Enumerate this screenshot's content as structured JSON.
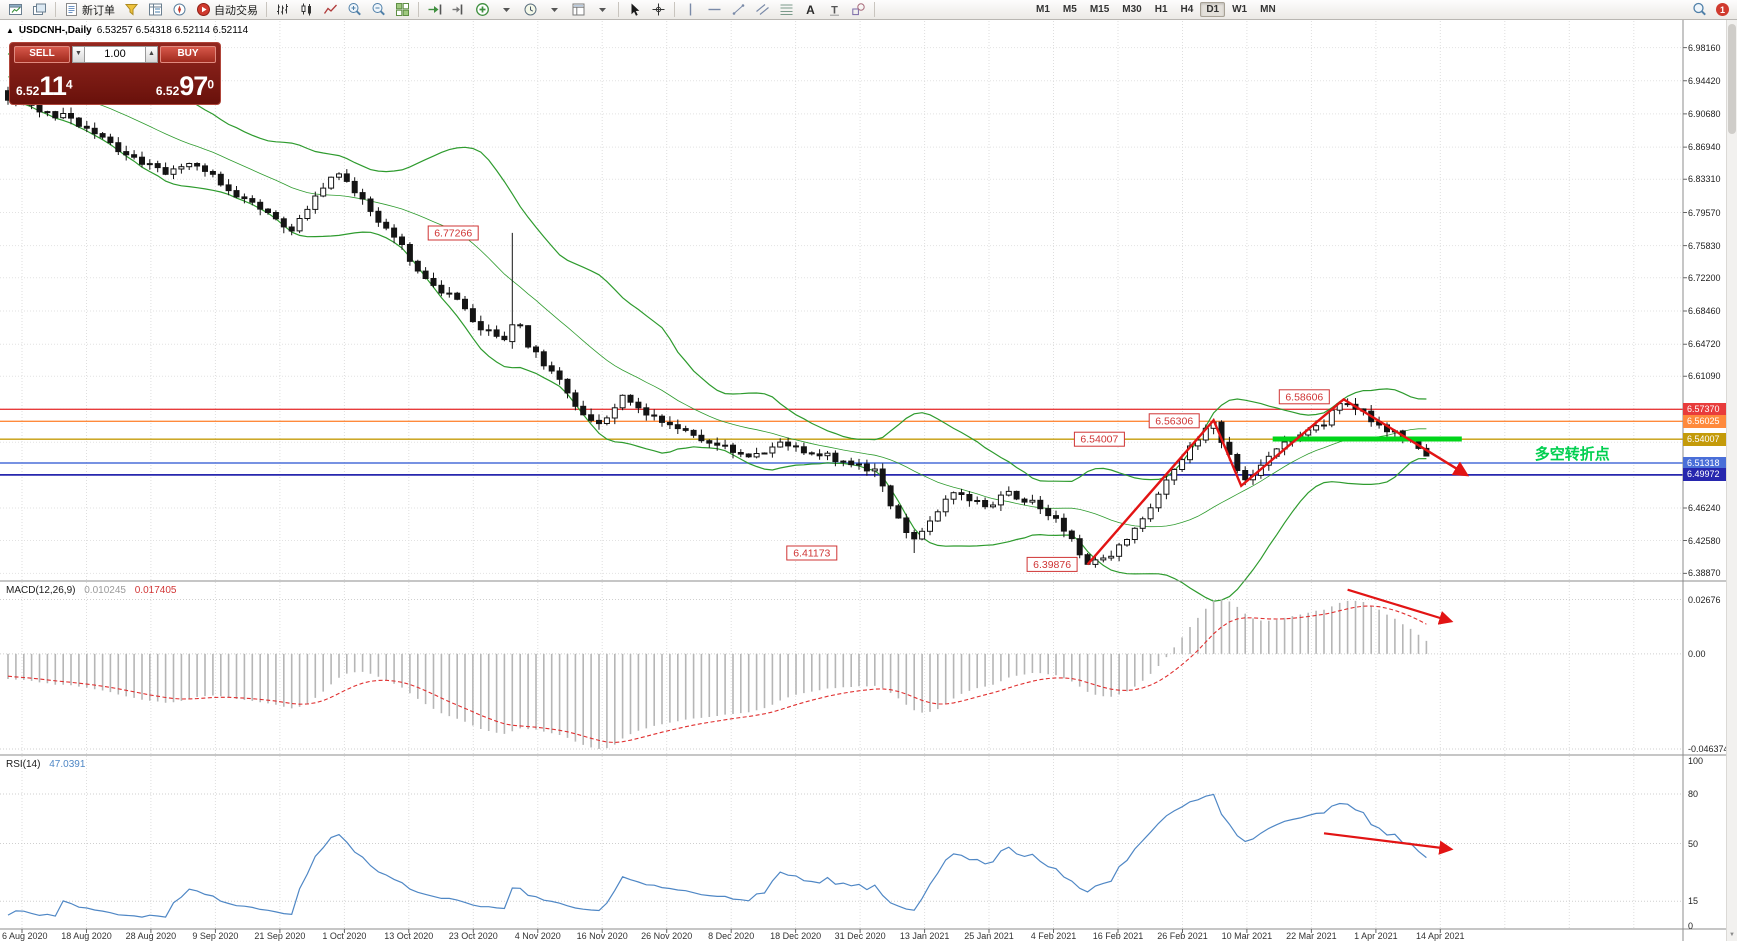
{
  "app": {
    "name": "MetaTrader"
  },
  "toolbar": {
    "items": [
      {
        "name": "new-chart-button",
        "glyph": "chartwin"
      },
      {
        "name": "chart-profiles-button",
        "glyph": "profiles"
      },
      {
        "sep": true
      },
      {
        "name": "new-order-button",
        "glyph": "order",
        "label": "新订单"
      },
      {
        "name": "market-watch-button",
        "glyph": "funnel"
      },
      {
        "name": "data-window-button",
        "glyph": "datawin"
      },
      {
        "name": "navigator-button",
        "glyph": "compass"
      },
      {
        "name": "autotrading-button",
        "glyph": "autotrade",
        "label": "自动交易"
      },
      {
        "sep": true
      },
      {
        "name": "bar-chart-button",
        "glyph": "bars"
      },
      {
        "name": "candlestick-chart-button",
        "glyph": "candles"
      },
      {
        "name": "line-chart-button",
        "glyph": "linechart"
      },
      {
        "name": "zoom-in-button",
        "glyph": "zoomin"
      },
      {
        "name": "zoom-out-button",
        "glyph": "zoomout"
      },
      {
        "name": "tile-windows-button",
        "glyph": "tile"
      },
      {
        "sep": true
      },
      {
        "name": "auto-scroll-button",
        "glyph": "autoscroll"
      },
      {
        "name": "chart-shift-button",
        "glyph": "chartshift"
      },
      {
        "name": "indicators-button",
        "glyph": "indicators"
      },
      {
        "name": "indicators-dropdown",
        "glyph": "dropdown"
      },
      {
        "name": "periods-button",
        "glyph": "clock"
      },
      {
        "name": "periods-dropdown",
        "glyph": "dropdown"
      },
      {
        "name": "templates-button",
        "glyph": "template"
      },
      {
        "name": "templates-dropdown",
        "glyph": "dropdown"
      },
      {
        "sep": true
      },
      {
        "name": "cursor-button",
        "glyph": "cursor"
      },
      {
        "name": "crosshair-button",
        "glyph": "crosshair"
      },
      {
        "sep": true
      },
      {
        "name": "vertical-line-button",
        "glyph": "vline"
      },
      {
        "name": "horizontal-line-button",
        "glyph": "hline"
      },
      {
        "name": "trendline-button",
        "glyph": "tline"
      },
      {
        "name": "channel-button",
        "glyph": "channel"
      },
      {
        "name": "fibonacci-button",
        "glyph": "fibo"
      },
      {
        "name": "text-button",
        "glyph": "textA"
      },
      {
        "name": "text-label-button",
        "glyph": "labelT"
      },
      {
        "name": "shapes-button",
        "glyph": "shapes"
      },
      {
        "sep": true
      }
    ],
    "timeframes": [
      {
        "label": "M1"
      },
      {
        "label": "M5"
      },
      {
        "label": "M15"
      },
      {
        "label": "M30"
      },
      {
        "label": "H1"
      },
      {
        "label": "H4"
      },
      {
        "label": "D1",
        "active": true
      },
      {
        "label": "W1"
      },
      {
        "label": "MN"
      }
    ],
    "right_items": [
      {
        "name": "search-button",
        "glyph": "magnifier"
      },
      {
        "name": "notification-badge",
        "badge": "1"
      }
    ]
  },
  "chart_header": {
    "collapse_icon": "▲",
    "symbol": "USDCNH-,Daily",
    "ohlc": "6.53257 6.54318 6.52114 6.52114"
  },
  "trade_panel": {
    "sell_label": "SELL",
    "buy_label": "BUY",
    "lot": "1.00",
    "spin_down": "▼",
    "spin_up": "▲",
    "bid": {
      "prefix": "6.52",
      "big": "11",
      "sup": "4"
    },
    "ask": {
      "prefix": "6.52",
      "big": "97",
      "sup": "0"
    }
  },
  "price_axis": {
    "labels": [
      "6.98160",
      "6.94420",
      "6.90680",
      "6.86940",
      "6.83310",
      "6.79570",
      "6.75830",
      "6.72200",
      "6.68460",
      "6.64720",
      "6.61090",
      "6.57370",
      "6.53660",
      "6.49950",
      "6.46240",
      "6.42580",
      "6.38870"
    ]
  },
  "macd": {
    "label": "MACD(12,26,9)",
    "value1": "0.010245",
    "value2": "0.017405",
    "axis": [
      "0.02676",
      "0.00",
      "-0.046374"
    ]
  },
  "rsi": {
    "label": "RSI(14)",
    "value": "47.0391",
    "axis": [
      "100",
      "80",
      "50",
      "15",
      "0"
    ],
    "levels": [
      80,
      50,
      15
    ]
  },
  "date_axis": {
    "labels": [
      "6 Aug 2020",
      "18 Aug 2020",
      "28 Aug 2020",
      "9 Sep 2020",
      "21 Sep 2020",
      "1 Oct 2020",
      "13 Oct 2020",
      "23 Oct 2020",
      "4 Nov 2020",
      "16 Nov 2020",
      "26 Nov 2020",
      "8 Dec 2020",
      "18 Dec 2020",
      "31 Dec 2020",
      "13 Jan 2021",
      "25 Jan 2021",
      "4 Feb 2021",
      "16 Feb 2021",
      "26 Feb 2021",
      "10 Mar 2021",
      "22 Mar 2021",
      "1 Apr 2021",
      "14 Apr 2021"
    ]
  },
  "scrollbar": {
    "up_icon": "▲",
    "down_icon": "▼"
  },
  "chart_data": {
    "type": "candlestick",
    "symbol": "USDCNH-",
    "timeframe": "Daily",
    "current_ohlc": {
      "open": 6.53257,
      "high": 6.54318,
      "low": 6.52114,
      "close": 6.52114
    },
    "price_range": {
      "max": 6.9816,
      "min": 6.3887
    },
    "indicators": {
      "bollinger": {
        "period": 20,
        "deviation": 2,
        "color": "#2e9b2e"
      },
      "macd": {
        "fast": 12,
        "slow": 26,
        "signal": 9,
        "histogram_color": "#b6b6b6",
        "signal_color": "#e03030"
      },
      "rsi": {
        "period": 14,
        "color": "#4f87c5"
      }
    },
    "close_anchors": [
      [
        0,
        6.925
      ],
      [
        4,
        6.913
      ],
      [
        8,
        6.9
      ],
      [
        12,
        6.878
      ],
      [
        16,
        6.856
      ],
      [
        20,
        6.84
      ],
      [
        24,
        6.852
      ],
      [
        27,
        6.828
      ],
      [
        30,
        6.812
      ],
      [
        33,
        6.798
      ],
      [
        36,
        6.775
      ],
      [
        39,
        6.815
      ],
      [
        42,
        6.842
      ],
      [
        45,
        6.808
      ],
      [
        48,
        6.778
      ],
      [
        51,
        6.744
      ],
      [
        54,
        6.712
      ],
      [
        57,
        6.695
      ],
      [
        60,
        6.662
      ],
      [
        63,
        6.656
      ],
      [
        65,
        6.668
      ],
      [
        66,
        6.645
      ],
      [
        69,
        6.618
      ],
      [
        72,
        6.578
      ],
      [
        75,
        6.556
      ],
      [
        78,
        6.586
      ],
      [
        81,
        6.57
      ],
      [
        84,
        6.556
      ],
      [
        87,
        6.546
      ],
      [
        90,
        6.532
      ],
      [
        94,
        6.521
      ],
      [
        98,
        6.536
      ],
      [
        102,
        6.526
      ],
      [
        106,
        6.514
      ],
      [
        110,
        6.504
      ],
      [
        112,
        6.468
      ],
      [
        114,
        6.432
      ],
      [
        115,
        6.425
      ],
      [
        117,
        6.452
      ],
      [
        119,
        6.472
      ],
      [
        121,
        6.48
      ],
      [
        124,
        6.463
      ],
      [
        127,
        6.478
      ],
      [
        130,
        6.468
      ],
      [
        132,
        6.457
      ],
      [
        134,
        6.438
      ],
      [
        136,
        6.41
      ],
      [
        137,
        6.402
      ],
      [
        139,
        6.406
      ],
      [
        141,
        6.418
      ],
      [
        144,
        6.452
      ],
      [
        147,
        6.492
      ],
      [
        150,
        6.53
      ],
      [
        152,
        6.552
      ],
      [
        153,
        6.56
      ],
      [
        155,
        6.52
      ],
      [
        157,
        6.492
      ],
      [
        159,
        6.508
      ],
      [
        161,
        6.528
      ],
      [
        163,
        6.54
      ],
      [
        165,
        6.548
      ],
      [
        167,
        6.56
      ],
      [
        169,
        6.578
      ],
      [
        170,
        6.582
      ],
      [
        172,
        6.568
      ],
      [
        174,
        6.556
      ],
      [
        176,
        6.546
      ],
      [
        178,
        6.538
      ],
      [
        179,
        6.53
      ],
      [
        180,
        6.5211
      ]
    ],
    "extremes": [
      {
        "i": 64,
        "open": 6.65,
        "close": 6.669,
        "high": 6.77266,
        "low": 6.642
      },
      {
        "i": 115,
        "low": 6.41173
      },
      {
        "i": 137,
        "low": 6.39876
      },
      {
        "i": 153,
        "high": 6.56306
      },
      {
        "i": 170,
        "high": 6.58606
      },
      {
        "i": 180,
        "close": 6.52114
      }
    ],
    "hlines": [
      {
        "label": "6.57370",
        "price": 6.5737,
        "color": "#e83c3c",
        "width": 1.4
      },
      {
        "label": "6.56025",
        "price": 6.56025,
        "color": "#ff8a3c",
        "width": 1.4
      },
      {
        "label": "6.54007",
        "price": 6.54007,
        "color": "#c49b0a",
        "width": 1.4
      },
      {
        "label": "6.51318",
        "price": 6.51318,
        "color": "#4a6fd8",
        "width": 1.4
      },
      {
        "label": "6.49972",
        "price": 6.49972,
        "color": "#2727ae",
        "width": 1.8
      }
    ],
    "callouts": [
      {
        "text": "6.77266",
        "i": 56.5,
        "price": 6.7725
      },
      {
        "text": "6.56306",
        "i": 148,
        "price": 6.5608
      },
      {
        "text": "6.58606",
        "i": 164.5,
        "price": 6.5878
      },
      {
        "text": "6.54007",
        "i": 138.5,
        "price": 6.54
      },
      {
        "text": "6.41173",
        "i": 102,
        "price": 6.4117
      },
      {
        "text": "6.39876",
        "i": 132.5,
        "price": 6.3988
      }
    ],
    "trend_line": [
      [
        137,
        6.3988
      ],
      [
        153,
        6.5615
      ],
      [
        156.5,
        6.4875
      ],
      [
        169.5,
        6.585
      ],
      [
        185,
        6.5005
      ]
    ],
    "support_band": {
      "i1": 160.5,
      "i2": 184.5,
      "price": 6.5402,
      "color": "#00d51a"
    },
    "note": {
      "text": "多空转折点",
      "i": 198.5,
      "price": 6.5235,
      "color": "#00cf4f"
    },
    "indicator_arrows": {
      "macd": [
        [
          170,
          0.05
        ],
        [
          183,
          0.23
        ]
      ],
      "rsi": [
        [
          167,
          0.45
        ],
        [
          183,
          0.54
        ]
      ]
    },
    "arrow_color": "#e21414"
  }
}
